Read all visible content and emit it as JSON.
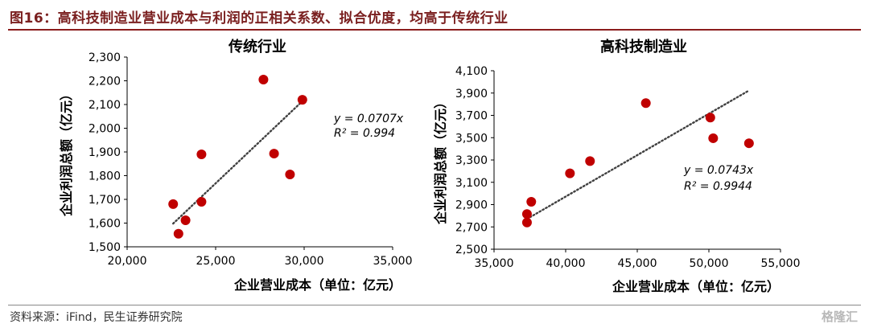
{
  "figure": {
    "title": "图16：高科技制造业营业成本与利润的正相关系数、拟合优度，均高于传统行业",
    "source": "资料来源：iFind，民生证券研究院",
    "watermark": "格隆汇"
  },
  "colors": {
    "point": "#c00000",
    "title": "#7a1f1f",
    "trend": "#404040"
  },
  "chart_data": [
    {
      "type": "scatter",
      "title": "传统行业",
      "xlabel": "企业营业成本（单位：亿元）",
      "ylabel": "企业利润总额（亿元）",
      "xlim": [
        20000,
        35000
      ],
      "ylim": [
        1500,
        2300
      ],
      "xticks": [
        20000,
        25000,
        30000,
        35000
      ],
      "xtick_labels": [
        "20,000",
        "25,000",
        "30,000",
        "35,000"
      ],
      "yticks": [
        1500,
        1600,
        1700,
        1800,
        1900,
        2000,
        2100,
        2200,
        2300
      ],
      "ytick_labels": [
        "1,500",
        "1,600",
        "1,700",
        "1,800",
        "1,900",
        "2,000",
        "2,100",
        "2,200",
        "2,300"
      ],
      "points": [
        {
          "x": 22600,
          "y": 1680
        },
        {
          "x": 22900,
          "y": 1555
        },
        {
          "x": 23300,
          "y": 1612
        },
        {
          "x": 24200,
          "y": 1690
        },
        {
          "x": 24200,
          "y": 1890
        },
        {
          "x": 27700,
          "y": 2205
        },
        {
          "x": 28300,
          "y": 1893
        },
        {
          "x": 29200,
          "y": 1805
        },
        {
          "x": 29900,
          "y": 2120
        }
      ],
      "trendline": {
        "x0": 22600,
        "y0": 1598,
        "x1": 29900,
        "y1": 2114
      },
      "equation": "y = 0.0707x",
      "r2": "R² = 0.994"
    },
    {
      "type": "scatter",
      "title": "高科技制造业",
      "xlabel": "企业营业成本（单位：亿元）",
      "ylabel": "企业利润总额（亿元）",
      "xlim": [
        35000,
        55000
      ],
      "ylim": [
        2500,
        4100
      ],
      "xticks": [
        35000,
        40000,
        45000,
        50000,
        55000
      ],
      "xtick_labels": [
        "35,000",
        "40,000",
        "45,000",
        "50,000",
        "55,000"
      ],
      "yticks": [
        2500,
        2700,
        2900,
        3100,
        3300,
        3500,
        3700,
        3900,
        4100
      ],
      "ytick_labels": [
        "2,500",
        "2,700",
        "2,900",
        "3,100",
        "3,300",
        "3,500",
        "3,700",
        "3,900",
        "4,100"
      ],
      "points": [
        {
          "x": 37300,
          "y": 2740
        },
        {
          "x": 37300,
          "y": 2815
        },
        {
          "x": 37600,
          "y": 2925
        },
        {
          "x": 40300,
          "y": 3180
        },
        {
          "x": 41700,
          "y": 3290
        },
        {
          "x": 45600,
          "y": 3810
        },
        {
          "x": 50100,
          "y": 3680
        },
        {
          "x": 50300,
          "y": 3495
        },
        {
          "x": 52800,
          "y": 3450
        }
      ],
      "trendline": {
        "x0": 37300,
        "y0": 2771,
        "x1": 52800,
        "y1": 3923
      },
      "equation": "y = 0.0743x",
      "r2": "R² = 0.9944"
    }
  ]
}
